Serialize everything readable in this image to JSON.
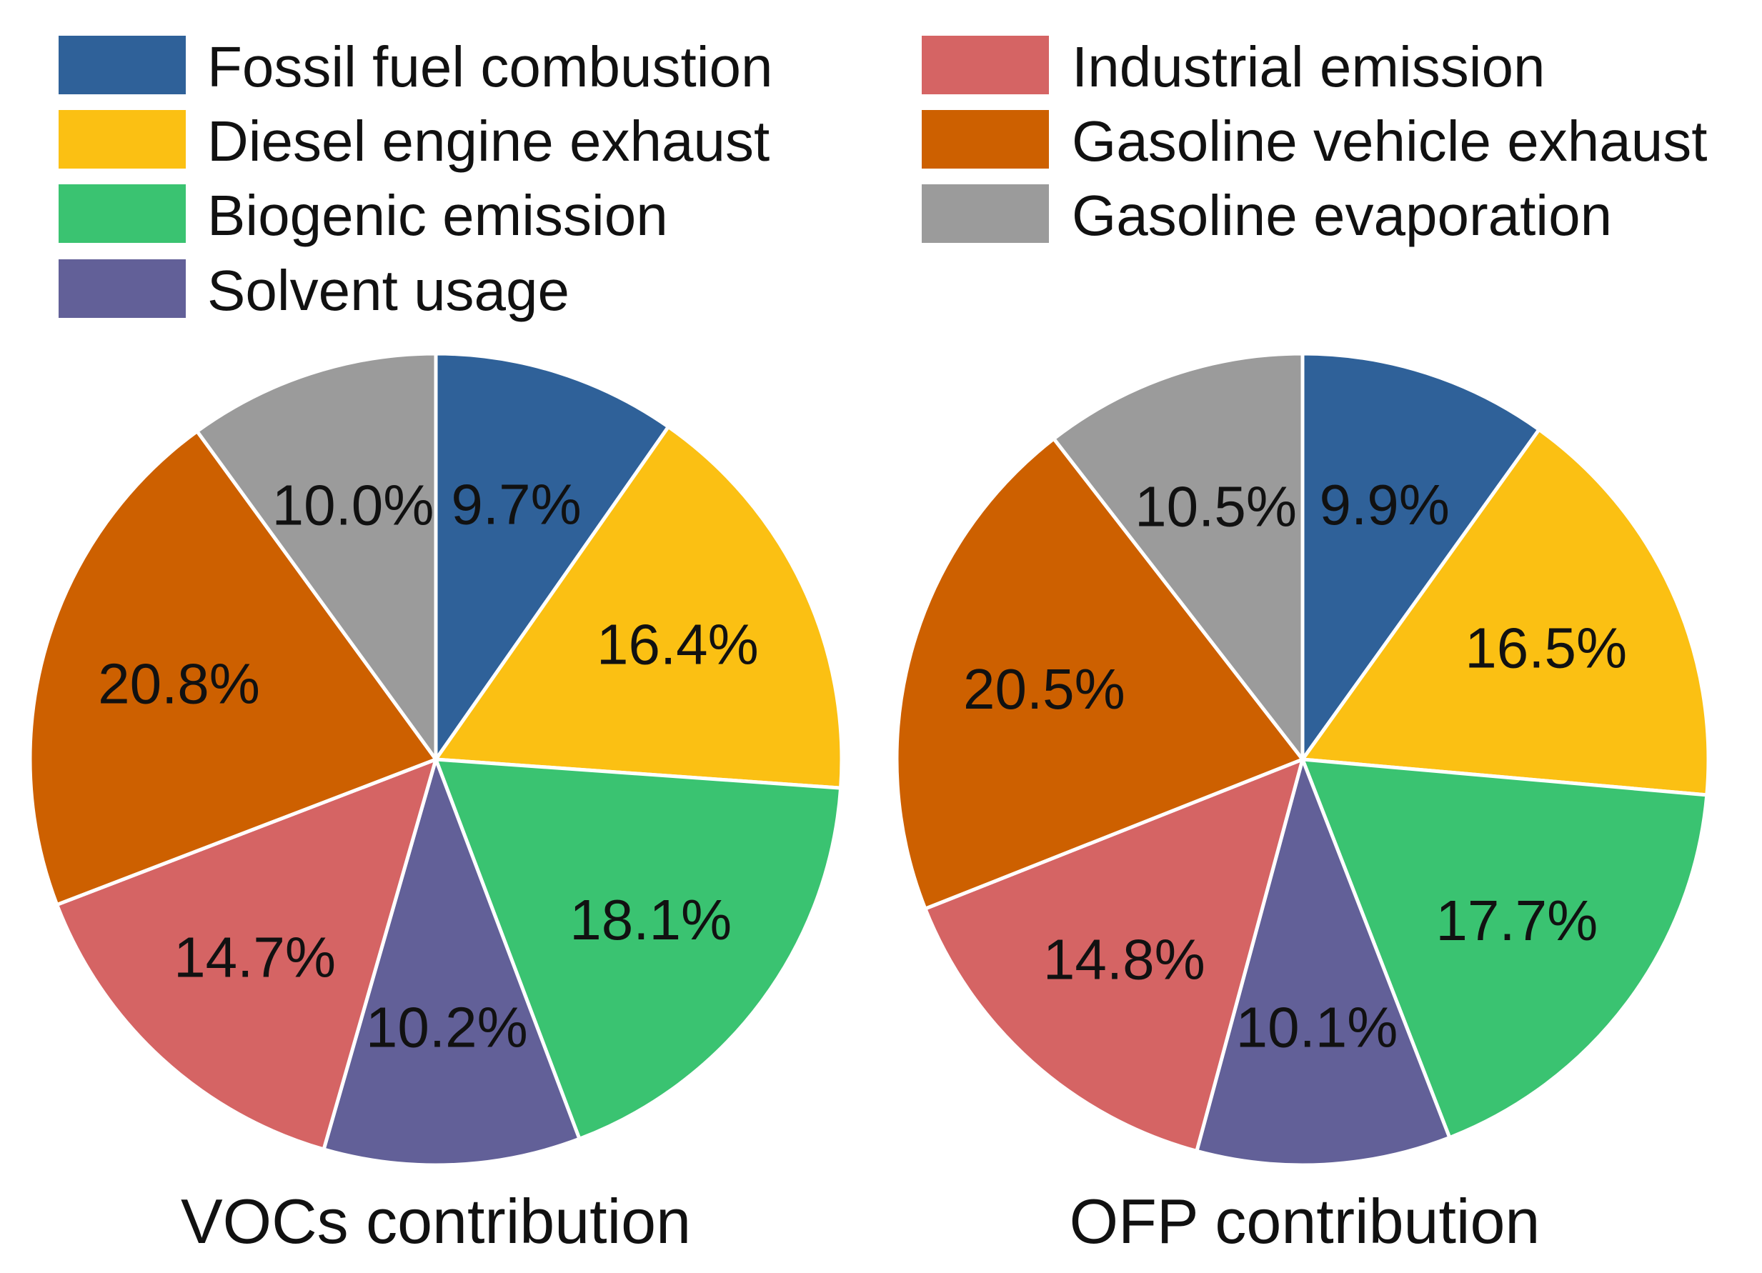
{
  "chart_data": {
    "type": "pie",
    "legend": {
      "placement": "top",
      "entries": [
        {
          "label": "Fossil fuel combustion",
          "color": "#2f6199"
        },
        {
          "label": "Diesel engine exhaust",
          "color": "#fbc013"
        },
        {
          "label": "Biogenic emission",
          "color": "#3ac371"
        },
        {
          "label": "Solvent usage",
          "color": "#626098"
        },
        {
          "label": "Industrial emission",
          "color": "#d56464"
        },
        {
          "label": "Gasoline vehicle exhaust",
          "color": "#cd6000"
        },
        {
          "label": "Gasoline evaporation",
          "color": "#9b9b9b"
        }
      ]
    },
    "charts": [
      {
        "title": "VOCs contribution",
        "values": [
          9.7,
          16.4,
          18.1,
          10.2,
          14.7,
          20.8,
          10.0
        ],
        "labels": [
          "9.7%",
          "16.4%",
          "18.1%",
          "10.2%",
          "14.7%",
          "20.8%",
          "10.0%"
        ]
      },
      {
        "title": "OFP contribution",
        "values": [
          9.9,
          16.5,
          17.7,
          10.1,
          14.8,
          20.5,
          10.5
        ],
        "labels": [
          "9.9%",
          "16.5%",
          "17.7%",
          "10.1%",
          "14.8%",
          "20.5%",
          "10.5%"
        ]
      }
    ]
  }
}
